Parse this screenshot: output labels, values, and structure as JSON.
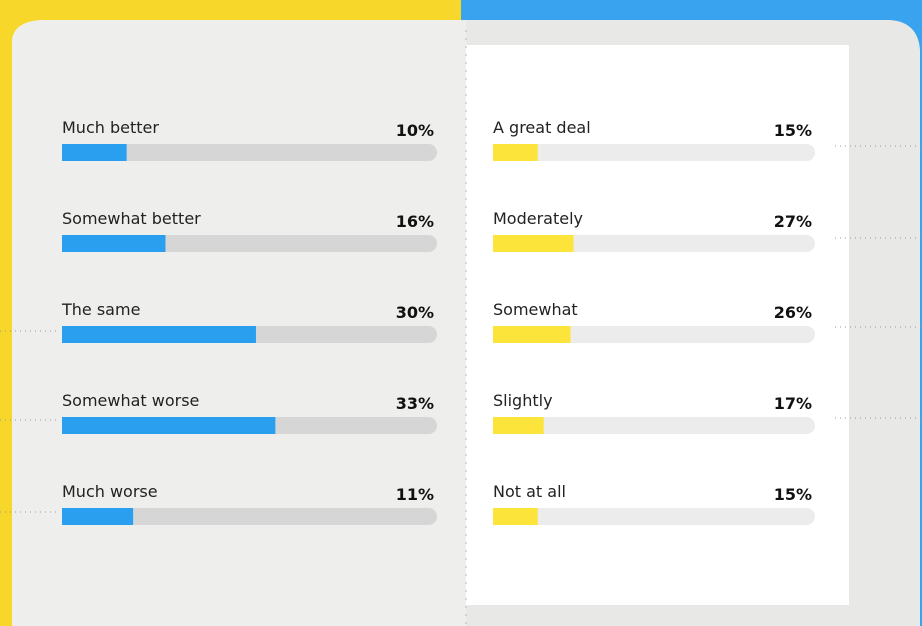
{
  "chart_data": [
    {
      "type": "bar",
      "orientation": "horizontal",
      "categories": [
        "Much better",
        "Somewhat better",
        "The same",
        "Somewhat worse",
        "Much worse"
      ],
      "values": [
        10,
        16,
        30,
        33,
        11
      ],
      "value_labels": [
        "10%",
        "16%",
        "30%",
        "33%",
        "11%"
      ],
      "color": "#2a9ff0",
      "xlim": [
        0,
        58
      ]
    },
    {
      "type": "bar",
      "orientation": "horizontal",
      "categories": [
        "A great deal",
        "Moderately",
        "Somewhat",
        "Slightly",
        "Not at all"
      ],
      "values": [
        15,
        27,
        26,
        17,
        15
      ],
      "value_labels": [
        "15%",
        "27%",
        "26%",
        "17%",
        "15%"
      ],
      "color": "#fde43a",
      "xlim": [
        0,
        108
      ]
    }
  ]
}
